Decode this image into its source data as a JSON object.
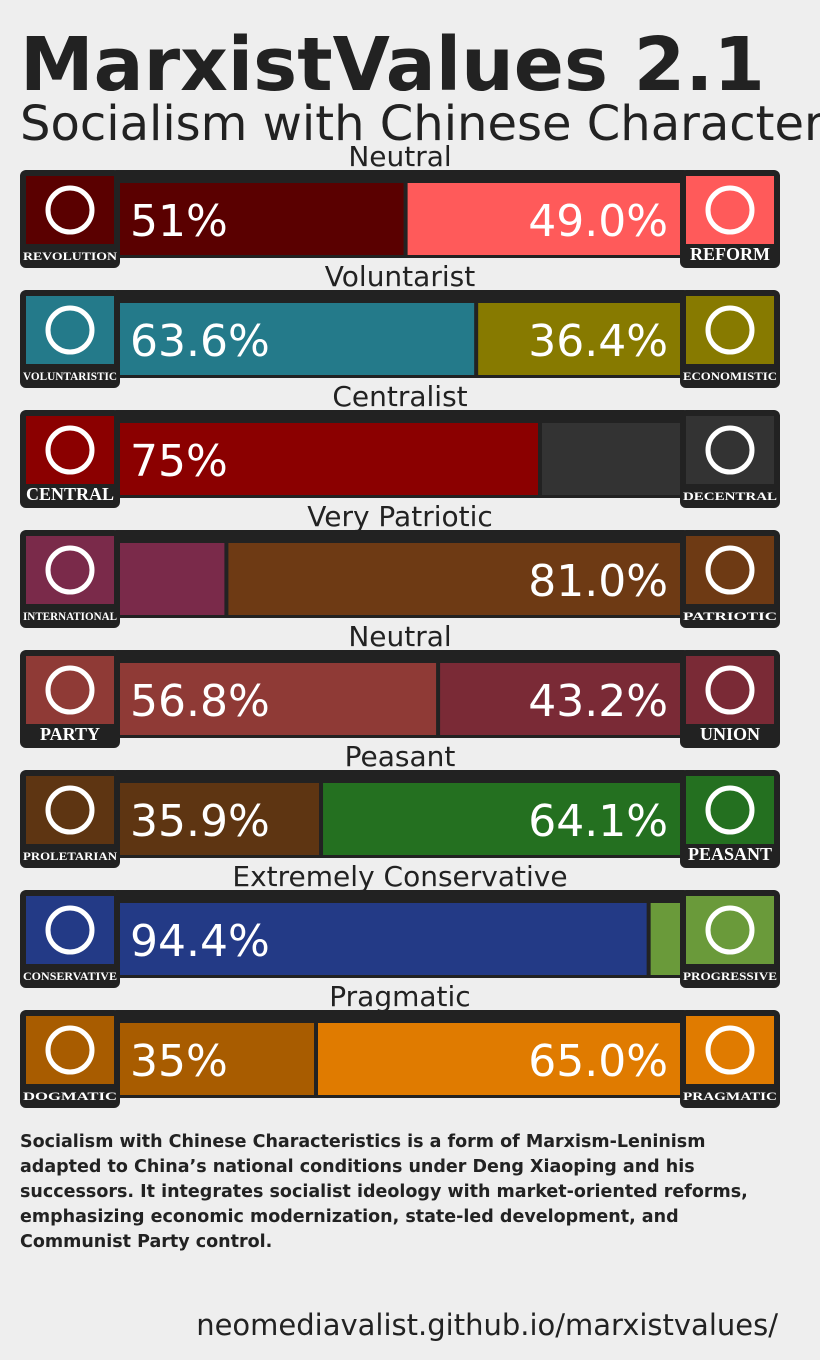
{
  "title": "MarxistValues 2.1",
  "subtitle": "Socialism with Chinese Characteristics",
  "axes": [
    {
      "label": "Neutral",
      "left": {
        "name": "REVOLUTION",
        "value": 51,
        "value_label": "51%",
        "color": "#5a0000"
      },
      "right": {
        "name": "REFORM",
        "value": 49.0,
        "value_label": "49.0%",
        "color": "#ff5a5a"
      }
    },
    {
      "label": "Voluntarist",
      "left": {
        "name": "VOLUNTARISTIC",
        "value": 63.6,
        "value_label": "63.6%",
        "color": "#247a8a"
      },
      "right": {
        "name": "ECONOMISTIC",
        "value": 36.4,
        "value_label": "36.4%",
        "color": "#877a00"
      }
    },
    {
      "label": "Centralist",
      "left": {
        "name": "CENTRAL",
        "value": 75,
        "value_label": "75%",
        "color": "#8b0000"
      },
      "right": {
        "name": "DECENTRAL",
        "value": 25,
        "color": "#333333"
      }
    },
    {
      "label": "Very Patriotic",
      "left": {
        "name": "INTERNATIONAL",
        "value": 19,
        "color": "#7a2a4a"
      },
      "right": {
        "name": "PATRIOTIC",
        "value": 81.0,
        "value_label": "81.0%",
        "color": "#6e3a14"
      }
    },
    {
      "label": "Neutral",
      "left": {
        "name": "PARTY",
        "value": 56.8,
        "value_label": "56.8%",
        "color": "#8f3a36"
      },
      "right": {
        "name": "UNION",
        "value": 43.2,
        "value_label": "43.2%",
        "color": "#7a2a36"
      }
    },
    {
      "label": "Peasant",
      "left": {
        "name": "PROLETARIAN",
        "value": 35.9,
        "value_label": "35.9%",
        "color": "#5e3512"
      },
      "right": {
        "name": "PEASANT",
        "value": 64.1,
        "value_label": "64.1%",
        "color": "#247020"
      }
    },
    {
      "label": "Extremely Conservative",
      "left": {
        "name": "CONSERVATIVE",
        "value": 94.4,
        "value_label": "94.4%",
        "color": "#233a86"
      },
      "right": {
        "name": "PROGRESSIVE",
        "value": 5.6,
        "color": "#6a9a3a"
      }
    },
    {
      "label": "Pragmatic",
      "left": {
        "name": "DOGMATIC",
        "value": 35,
        "value_label": "35%",
        "color": "#a85c00"
      },
      "right": {
        "name": "PRAGMATIC",
        "value": 65.0,
        "value_label": "65.0%",
        "color": "#e07b00"
      }
    }
  ],
  "description": "Socialism with Chinese Characteristics is a form of Marxism-Leninism adapted to China’s national conditions under Deng Xiaoping and his successors. It integrates socialist ideology with market-oriented reforms, emphasizing economic modernization, state-led development, and Communist Party control.",
  "footer": "neomediavalist.github.io/marxistvalues/"
}
